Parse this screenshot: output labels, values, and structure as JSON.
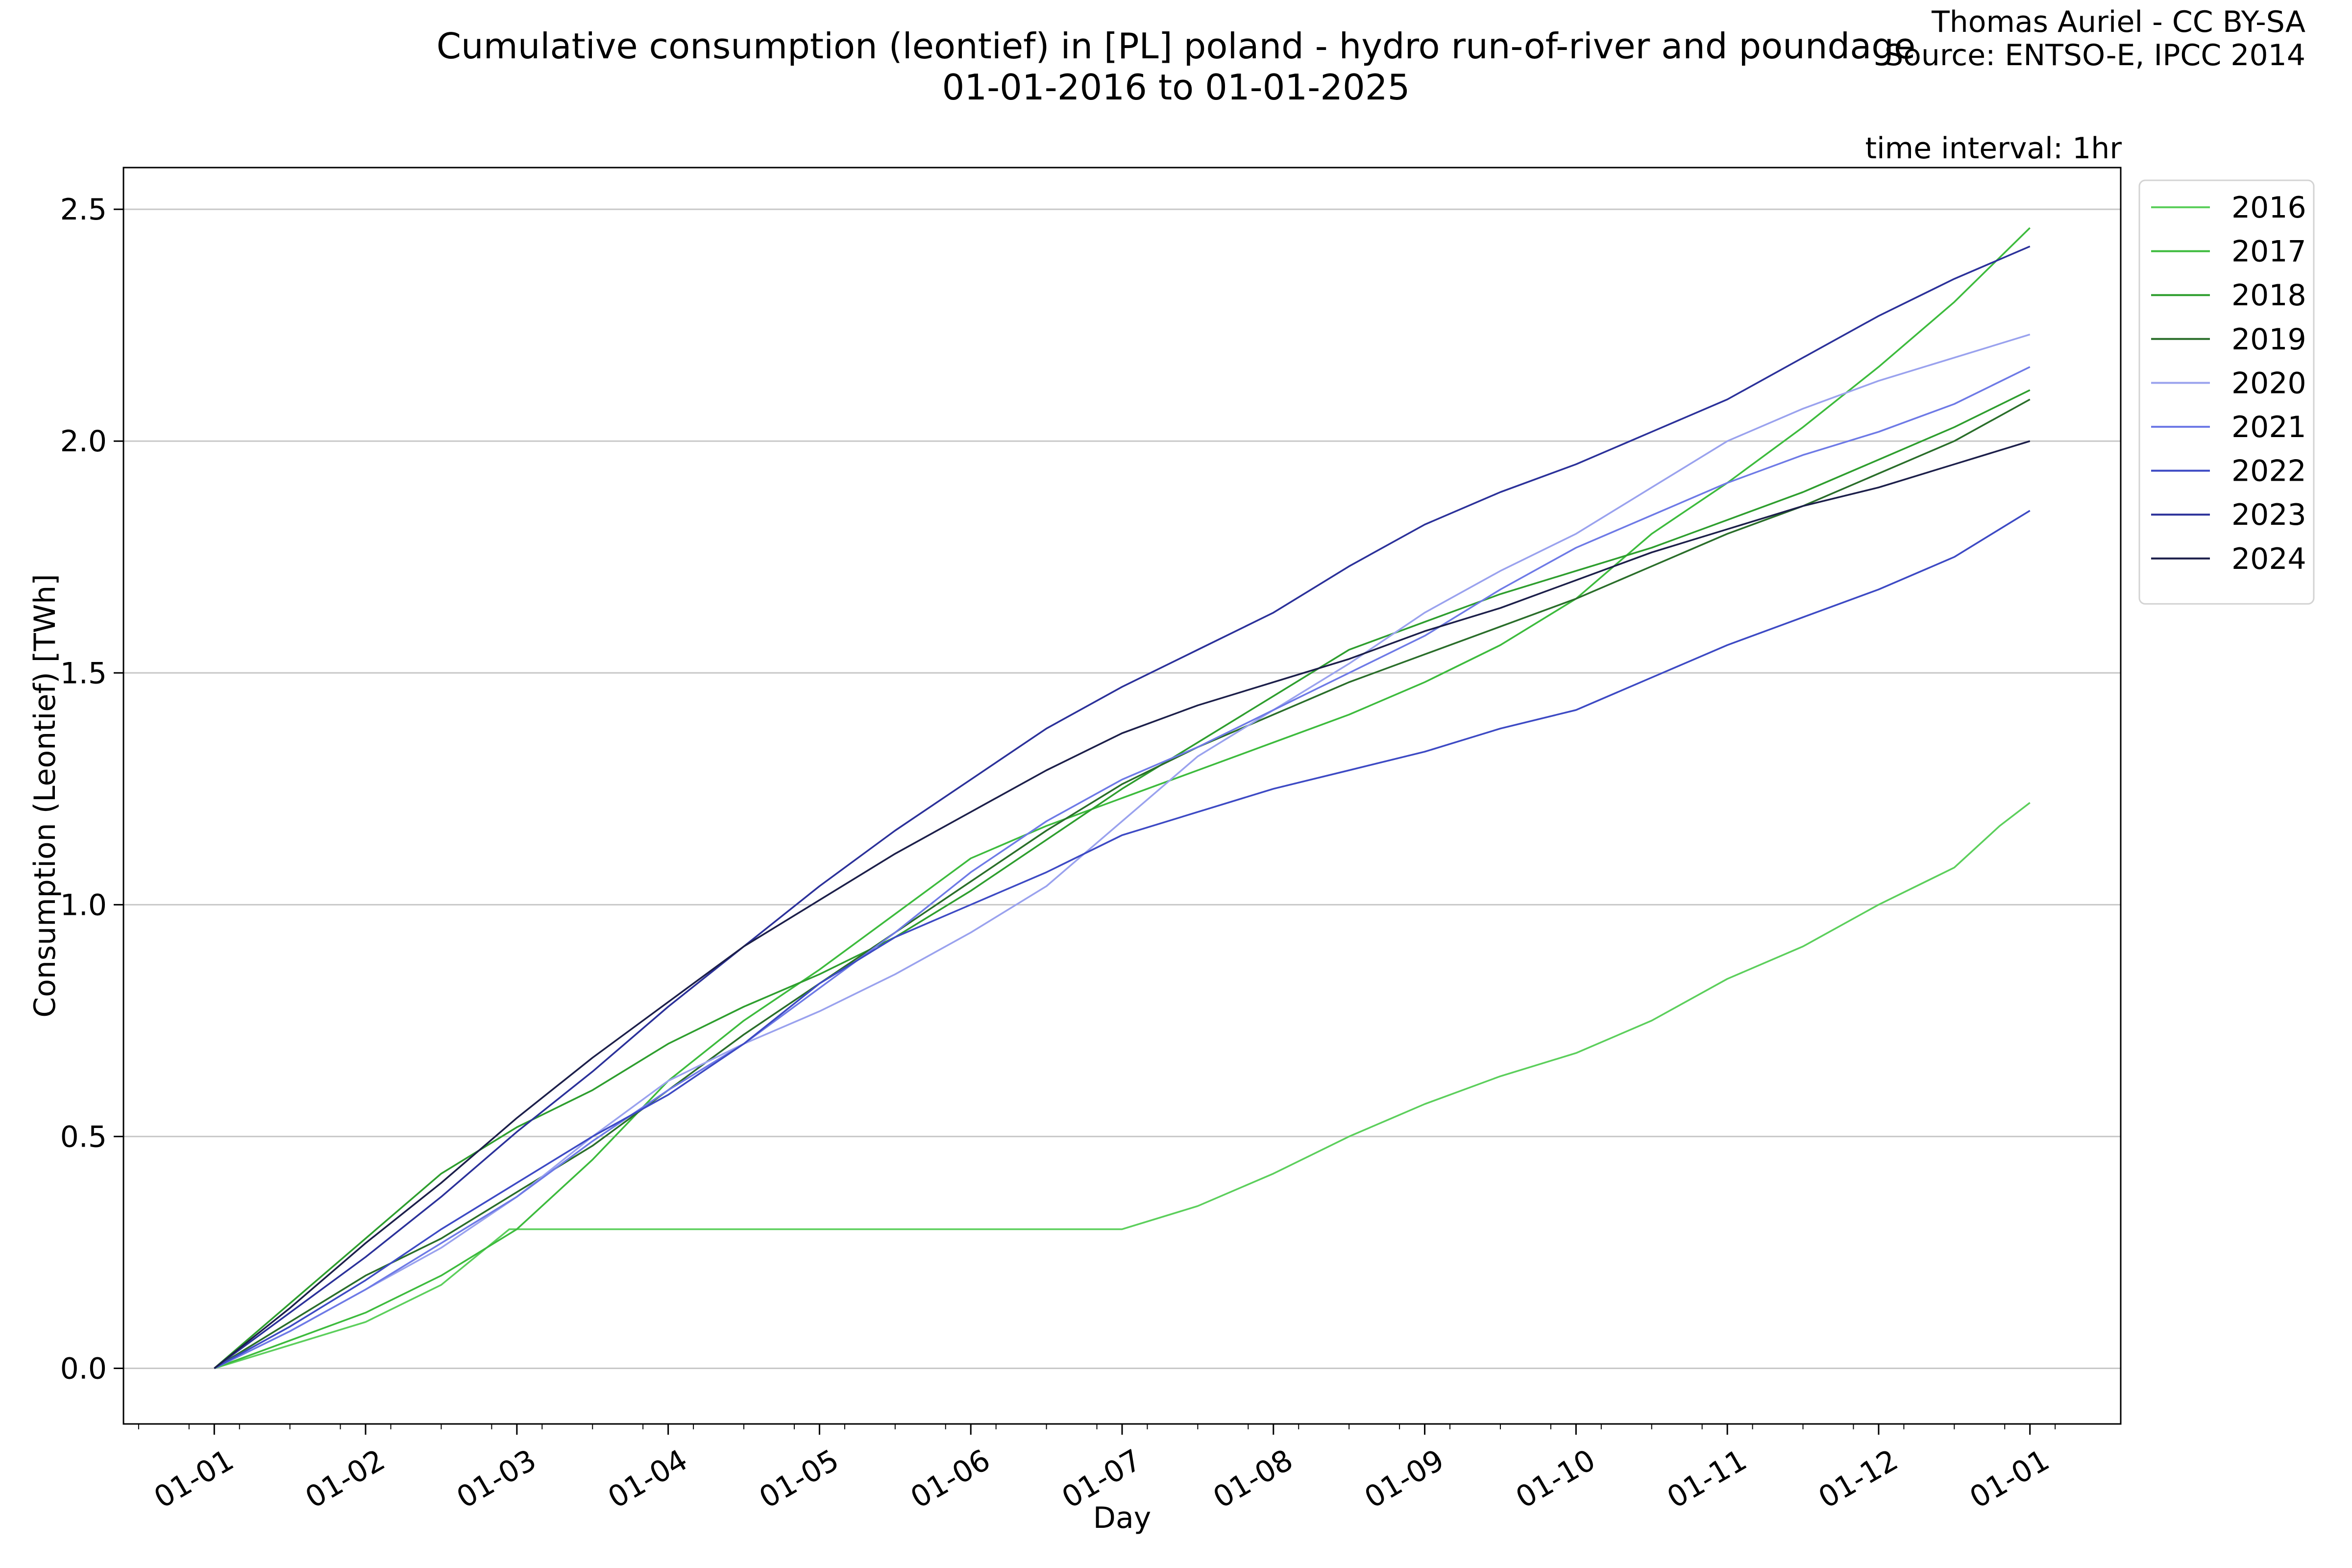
{
  "header": {
    "title_line1": "Cumulative consumption (leontief) in [PL] poland - hydro run-of-river and poundage",
    "title_line2": "01-01-2016 to 01-01-2025",
    "credit_line1": "Thomas Auriel - CC BY-SA",
    "credit_line2": "Source: ENTSO-E, IPCC 2014",
    "time_interval": "time interval: 1hr"
  },
  "chart_data": {
    "type": "line",
    "xlabel": "Day",
    "ylabel": "Consumption (Leontief) [TWh]",
    "x_ticks": [
      "01-01",
      "01-02",
      "01-03",
      "01-04",
      "01-05",
      "01-06",
      "01-07",
      "01-08",
      "01-09",
      "01-10",
      "01-11",
      "01-12",
      "01-01"
    ],
    "x_tick_months": [
      0,
      1,
      2,
      3,
      4,
      5,
      6,
      7,
      8,
      9,
      10,
      11,
      12
    ],
    "xlim": [
      -0.6,
      12.6
    ],
    "ylim": [
      -0.12,
      2.59
    ],
    "y_ticks": [
      0.0,
      0.5,
      1.0,
      1.5,
      2.0,
      2.5
    ],
    "y_tick_labels": [
      "0.0",
      "0.5",
      "1.0",
      "1.5",
      "2.0",
      "2.5"
    ],
    "grid": "horizontal",
    "legend_position": "outside-top-right",
    "x_unit": "month of year (0 = 01-01)",
    "series": [
      {
        "name": "2016",
        "color": "#5ccf5c",
        "x": [
          0,
          0.5,
          1,
          1.5,
          1.95,
          2.0,
          6.0,
          6.5,
          7.0,
          7.5,
          8.0,
          8.5,
          9.0,
          9.5,
          10.0,
          10.5,
          11.0,
          11.5,
          11.8,
          12.0
        ],
        "y": [
          0.0,
          0.05,
          0.1,
          0.18,
          0.3,
          0.3,
          0.3,
          0.35,
          0.42,
          0.5,
          0.57,
          0.63,
          0.68,
          0.75,
          0.84,
          0.91,
          1.0,
          1.08,
          1.17,
          1.22
        ]
      },
      {
        "name": "2017",
        "color": "#3dbb3d",
        "x": [
          0,
          0.5,
          1,
          1.5,
          2,
          2.5,
          3,
          3.5,
          4,
          4.5,
          5,
          5.5,
          6,
          6.5,
          7,
          7.5,
          8,
          8.5,
          9,
          9.5,
          10,
          10.5,
          11,
          11.5,
          12
        ],
        "y": [
          0.0,
          0.06,
          0.12,
          0.2,
          0.3,
          0.45,
          0.62,
          0.75,
          0.86,
          0.98,
          1.1,
          1.17,
          1.23,
          1.29,
          1.35,
          1.41,
          1.48,
          1.56,
          1.66,
          1.8,
          1.91,
          2.03,
          2.16,
          2.3,
          2.46
        ]
      },
      {
        "name": "2018",
        "color": "#2e9e2e",
        "x": [
          0,
          0.5,
          1,
          1.5,
          2,
          2.5,
          3,
          3.5,
          4,
          4.5,
          5,
          5.5,
          6,
          6.5,
          7,
          7.5,
          8,
          8.5,
          9,
          9.5,
          10,
          10.5,
          11,
          11.5,
          12
        ],
        "y": [
          0.0,
          0.14,
          0.28,
          0.42,
          0.52,
          0.6,
          0.7,
          0.78,
          0.85,
          0.93,
          1.03,
          1.14,
          1.25,
          1.35,
          1.45,
          1.55,
          1.61,
          1.67,
          1.72,
          1.77,
          1.83,
          1.89,
          1.96,
          2.03,
          2.11
        ]
      },
      {
        "name": "2019",
        "color": "#2a6e2a",
        "x": [
          0,
          0.5,
          1,
          1.5,
          2,
          2.5,
          3,
          3.5,
          4,
          4.5,
          5,
          5.5,
          6,
          6.5,
          7,
          7.5,
          8,
          8.5,
          9,
          9.5,
          10,
          10.5,
          11,
          11.5,
          12
        ],
        "y": [
          0.0,
          0.1,
          0.2,
          0.28,
          0.38,
          0.48,
          0.6,
          0.72,
          0.83,
          0.94,
          1.05,
          1.16,
          1.26,
          1.34,
          1.41,
          1.48,
          1.54,
          1.6,
          1.66,
          1.73,
          1.8,
          1.86,
          1.93,
          2.0,
          2.09
        ]
      },
      {
        "name": "2020",
        "color": "#9aa2ee",
        "x": [
          0,
          0.5,
          1,
          1.5,
          2,
          2.5,
          3,
          3.5,
          4,
          4.5,
          5,
          5.5,
          6,
          6.5,
          7,
          7.5,
          8,
          8.5,
          9,
          9.5,
          10,
          10.5,
          11,
          11.5,
          12
        ],
        "y": [
          0.0,
          0.08,
          0.17,
          0.26,
          0.37,
          0.5,
          0.62,
          0.7,
          0.77,
          0.85,
          0.94,
          1.04,
          1.18,
          1.32,
          1.42,
          1.52,
          1.63,
          1.72,
          1.8,
          1.9,
          2.0,
          2.07,
          2.13,
          2.18,
          2.23
        ]
      },
      {
        "name": "2021",
        "color": "#6e7ae6",
        "x": [
          0,
          0.5,
          1,
          1.5,
          2,
          2.5,
          3,
          3.5,
          4,
          4.5,
          5,
          5.5,
          6,
          6.5,
          7,
          7.5,
          8,
          8.5,
          9,
          9.5,
          10,
          10.5,
          11,
          11.5,
          12
        ],
        "y": [
          0.0,
          0.08,
          0.17,
          0.27,
          0.37,
          0.49,
          0.6,
          0.7,
          0.82,
          0.94,
          1.07,
          1.18,
          1.27,
          1.34,
          1.42,
          1.5,
          1.58,
          1.68,
          1.77,
          1.84,
          1.91,
          1.97,
          2.02,
          2.08,
          2.16
        ]
      },
      {
        "name": "2022",
        "color": "#3d4ac4",
        "x": [
          0,
          0.5,
          1,
          1.5,
          2,
          2.5,
          3,
          3.5,
          4,
          4.5,
          5,
          5.5,
          6,
          6.5,
          7,
          7.5,
          8,
          8.5,
          9,
          9.5,
          10,
          10.5,
          11,
          11.5,
          12
        ],
        "y": [
          0.0,
          0.09,
          0.19,
          0.3,
          0.4,
          0.5,
          0.59,
          0.7,
          0.83,
          0.93,
          1.0,
          1.07,
          1.15,
          1.2,
          1.25,
          1.29,
          1.33,
          1.38,
          1.42,
          1.49,
          1.56,
          1.62,
          1.68,
          1.75,
          1.85
        ]
      },
      {
        "name": "2023",
        "color": "#2b319a",
        "x": [
          0,
          0.5,
          1,
          1.5,
          2,
          2.5,
          3,
          3.5,
          4,
          4.5,
          5,
          5.5,
          6,
          6.5,
          7,
          7.5,
          8,
          8.5,
          9,
          9.5,
          10,
          10.5,
          11,
          11.5,
          12
        ],
        "y": [
          0.0,
          0.12,
          0.24,
          0.37,
          0.51,
          0.64,
          0.78,
          0.91,
          1.04,
          1.16,
          1.27,
          1.38,
          1.47,
          1.55,
          1.63,
          1.73,
          1.82,
          1.89,
          1.95,
          2.02,
          2.09,
          2.18,
          2.27,
          2.35,
          2.42
        ]
      },
      {
        "name": "2024",
        "color": "#1c1f4a",
        "x": [
          0,
          0.5,
          1,
          1.5,
          2,
          2.5,
          3,
          3.5,
          4,
          4.5,
          5,
          5.5,
          6,
          6.5,
          7,
          7.5,
          8,
          8.5,
          9,
          9.5,
          10,
          10.5,
          11,
          11.5,
          12
        ],
        "y": [
          0.0,
          0.13,
          0.27,
          0.4,
          0.54,
          0.67,
          0.79,
          0.91,
          1.01,
          1.11,
          1.2,
          1.29,
          1.37,
          1.43,
          1.48,
          1.53,
          1.59,
          1.64,
          1.7,
          1.76,
          1.81,
          1.86,
          1.9,
          1.95,
          2.0
        ]
      }
    ]
  }
}
